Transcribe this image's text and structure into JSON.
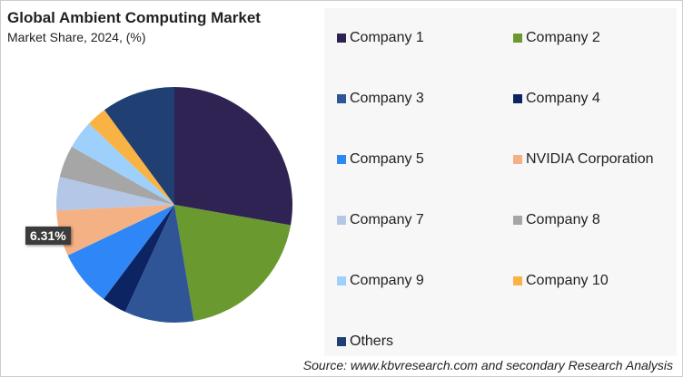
{
  "chart_data": {
    "type": "pie",
    "title": "Global Ambient Computing Market",
    "subtitle": "Market Share, 2024, (%)",
    "start_angle": "12 o'clock, clockwise",
    "legend_position": "right",
    "slices": [
      {
        "label": "Company 1",
        "value": 27.8,
        "color": "#2e2352"
      },
      {
        "label": "Company 2",
        "value": 19.6,
        "color": "#6a992f"
      },
      {
        "label": "Company 3",
        "value": 9.5,
        "color": "#2f5597"
      },
      {
        "label": "Company 4",
        "value": 3.4,
        "color": "#0c2461"
      },
      {
        "label": "Company 5",
        "value": 7.7,
        "color": "#2f86f7"
      },
      {
        "label": "NVIDIA Corporation",
        "value": 6.31,
        "color": "#f4b183"
      },
      {
        "label": "Company 7",
        "value": 4.6,
        "color": "#b4c7e7"
      },
      {
        "label": "Company 8",
        "value": 4.4,
        "color": "#a6a6a6"
      },
      {
        "label": "Company 9",
        "value": 3.9,
        "color": "#9dd0fa"
      },
      {
        "label": "Company 10",
        "value": 2.8,
        "color": "#f9b345"
      },
      {
        "label": "Others",
        "value": 10.1,
        "color": "#203f72"
      }
    ],
    "data_label": "6.31%",
    "source": "Source: www.kbvresearch.com and secondary Research Analysis"
  }
}
